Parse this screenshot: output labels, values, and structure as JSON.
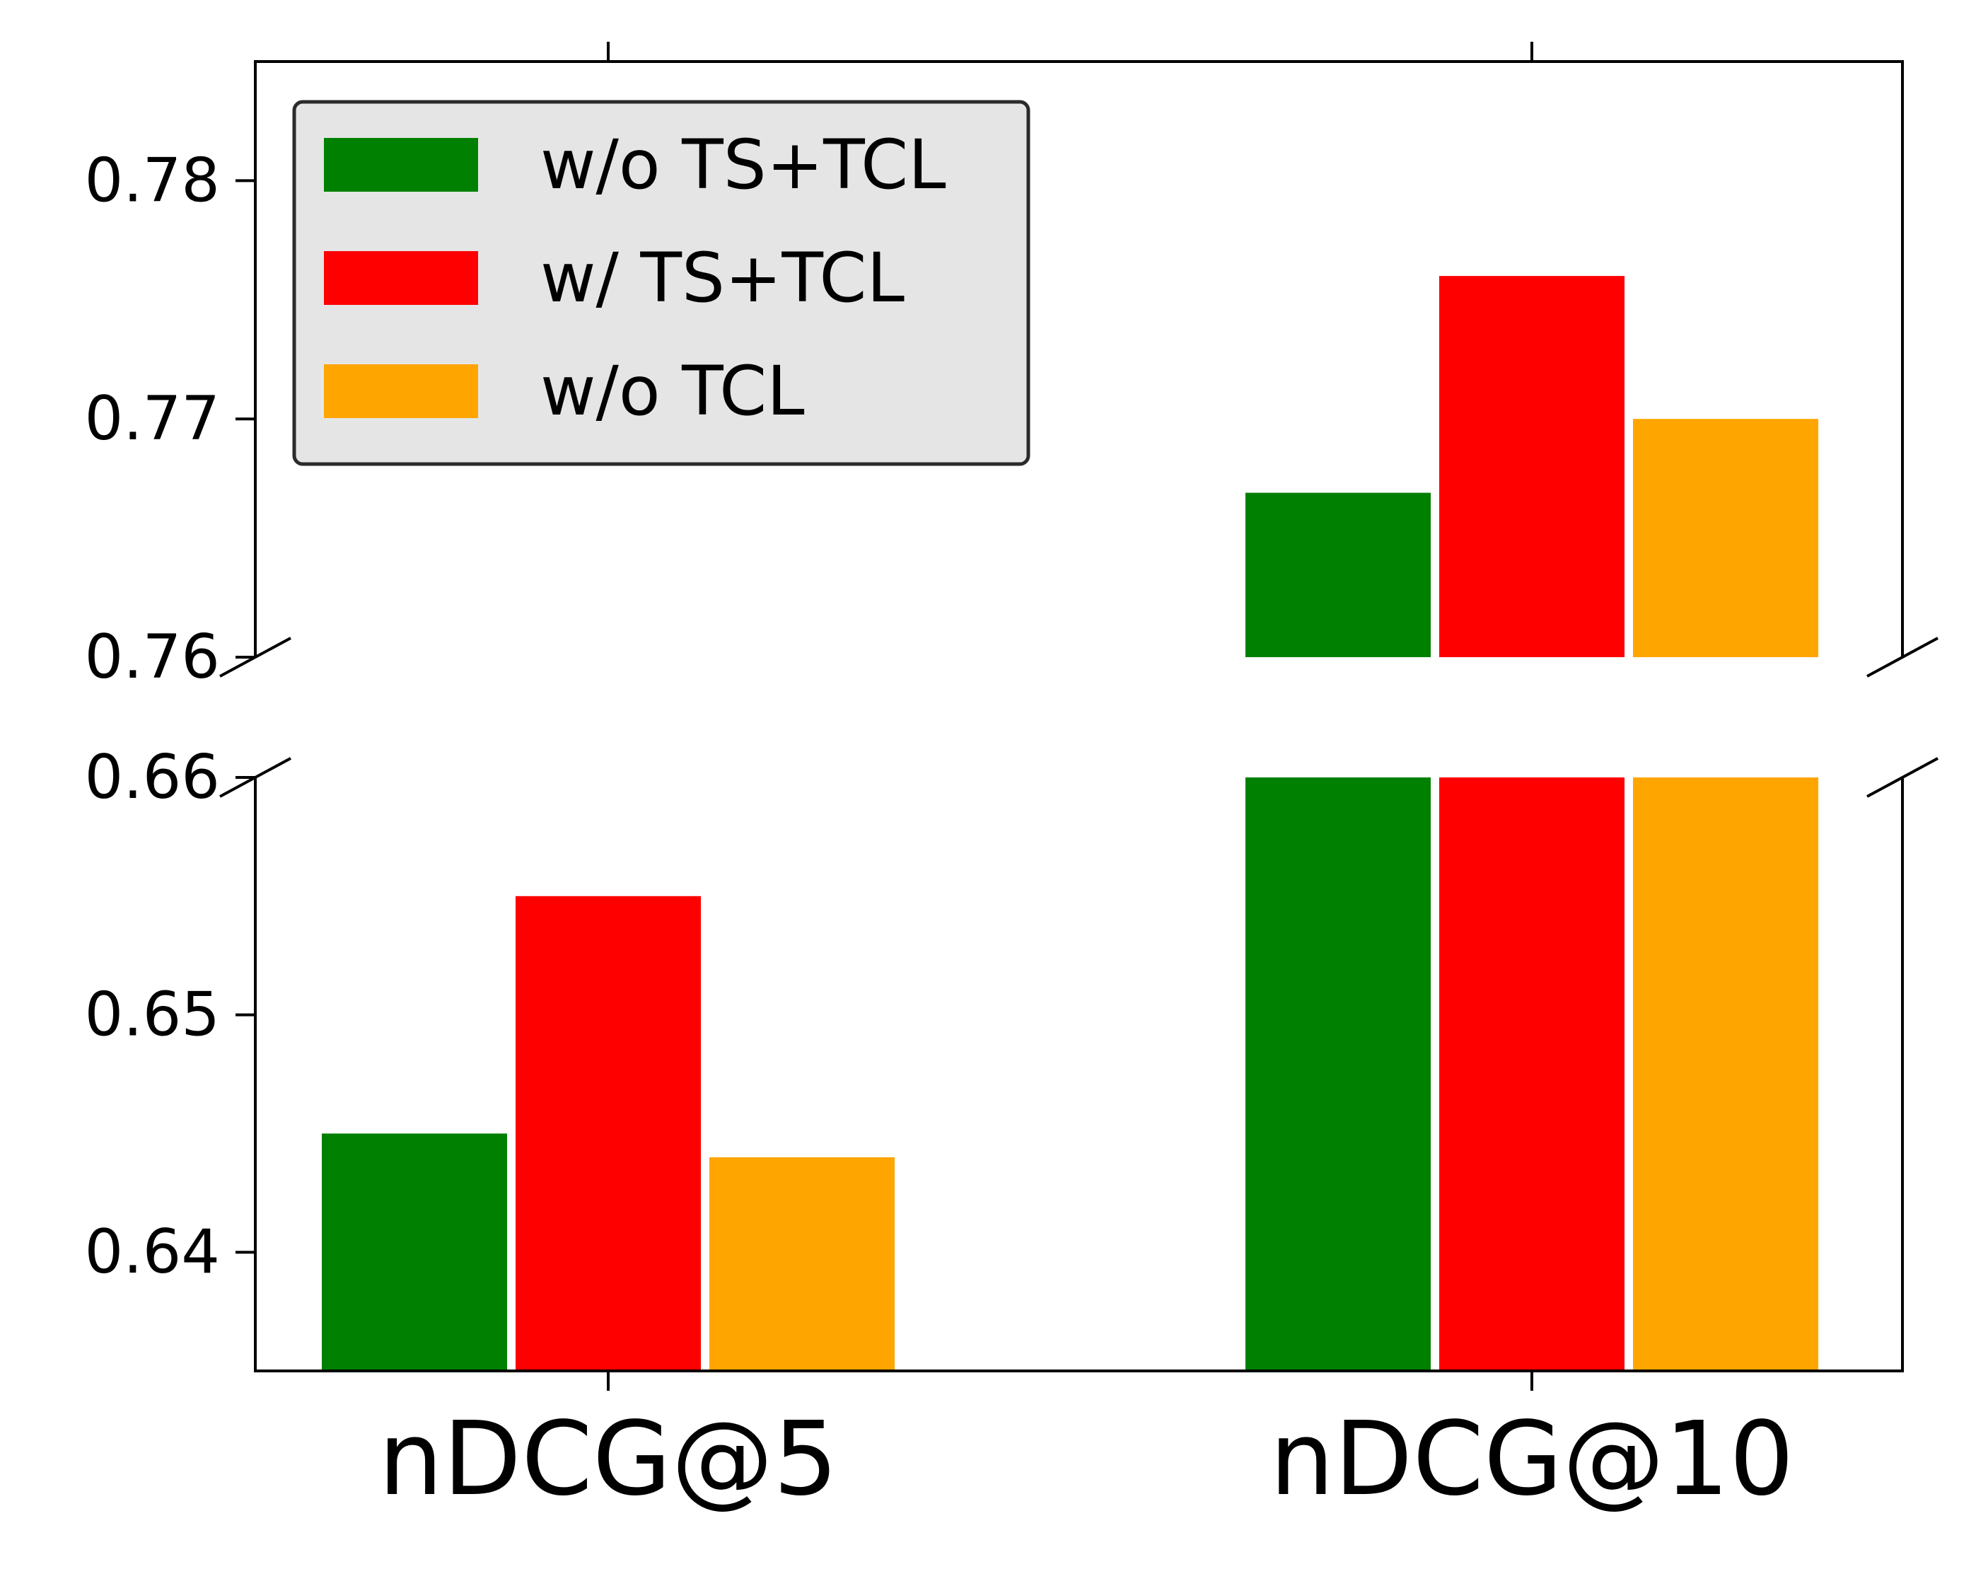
{
  "chart_data": {
    "type": "bar",
    "broken_axis": true,
    "categories": [
      "nDCG@5",
      "nDCG@10"
    ],
    "series": [
      {
        "name": "w/o TS+TCL",
        "color": "#008000",
        "values": [
          0.645,
          0.7669
        ]
      },
      {
        "name": "w/ TS+TCL",
        "color": "#ff0000",
        "values": [
          0.655,
          0.776
        ]
      },
      {
        "name": "w/o TCL",
        "color": "#ffa500",
        "values": [
          0.644,
          0.77
        ]
      }
    ],
    "upper_panel": {
      "ylim": [
        0.76,
        0.785
      ],
      "yticks": [
        0.76,
        0.77,
        0.78
      ],
      "ytick_labels": [
        "0.76",
        "0.77",
        "0.78"
      ]
    },
    "lower_panel": {
      "ylim": [
        0.635,
        0.66
      ],
      "yticks": [
        0.64,
        0.65,
        0.66
      ],
      "ytick_labels": [
        "0.64",
        "0.65",
        "0.66"
      ]
    },
    "title": "",
    "xlabel": "",
    "ylabel": "",
    "legend_position": "top-left",
    "grid": false
  }
}
